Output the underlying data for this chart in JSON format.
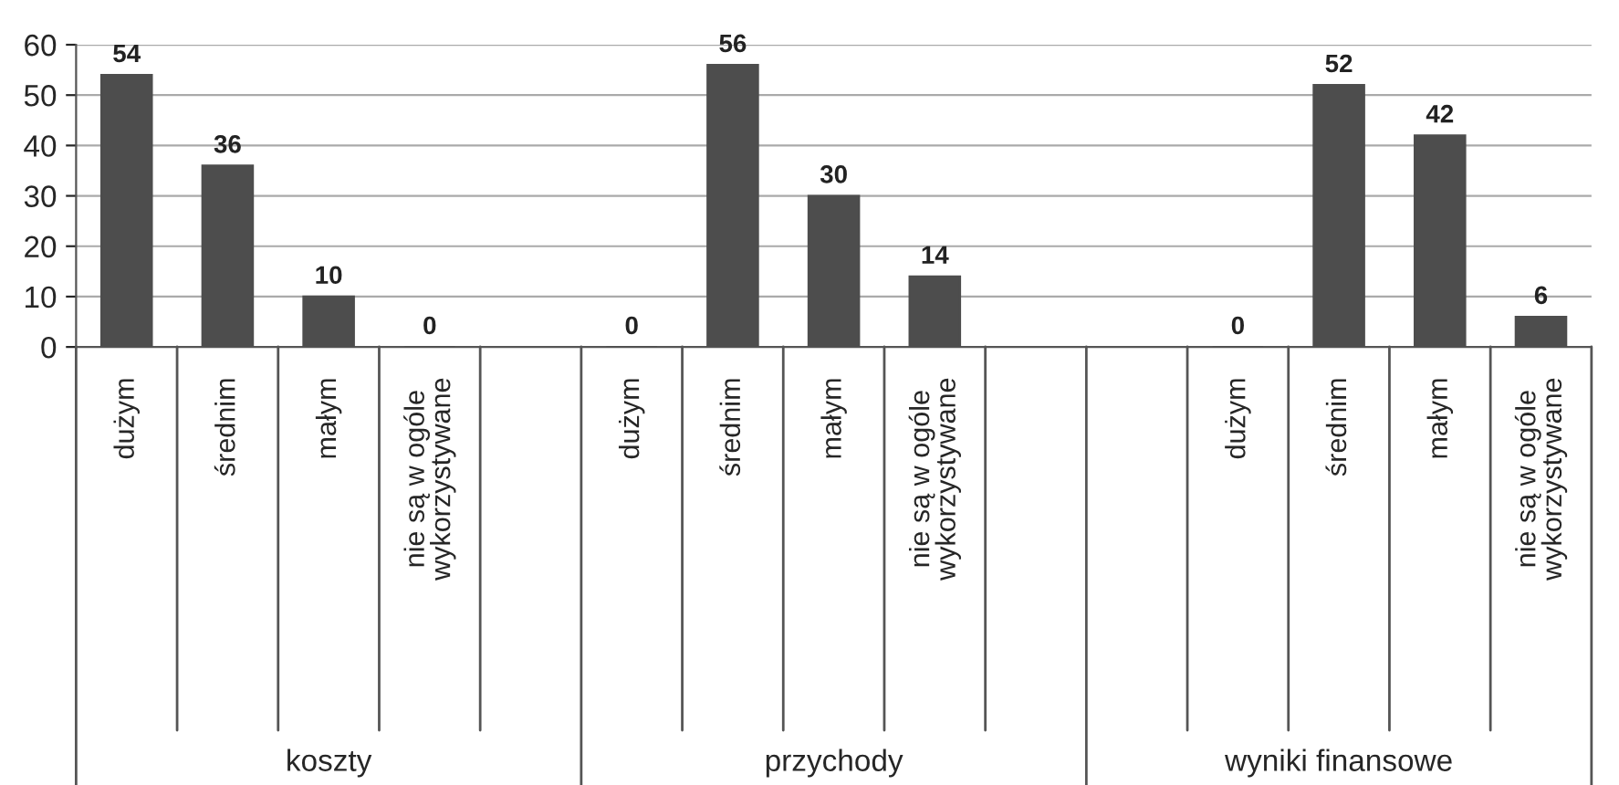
{
  "chart_data": {
    "type": "bar",
    "categories": [
      "dużym",
      "średnim",
      "małym",
      "nie są w ogóle\nwykorzystywane",
      null,
      "dużym",
      "średnim",
      "małym",
      "nie są w ogóle\nwykorzystywane",
      null,
      null,
      "dużym",
      "średnim",
      "małym",
      "nie są w ogóle\nwykorzystywane"
    ],
    "values": [
      54,
      36,
      10,
      0,
      null,
      0,
      56,
      30,
      14,
      null,
      null,
      0,
      52,
      42,
      6
    ],
    "color": "#4d4d4d",
    "ylim": [
      0,
      60
    ],
    "yticks": [
      0,
      10,
      20,
      30,
      40,
      50,
      60
    ],
    "grid": "y",
    "data_labels": true,
    "annotations": [
      "koszty",
      "przychody",
      "wyniki finansowe"
    ]
  }
}
